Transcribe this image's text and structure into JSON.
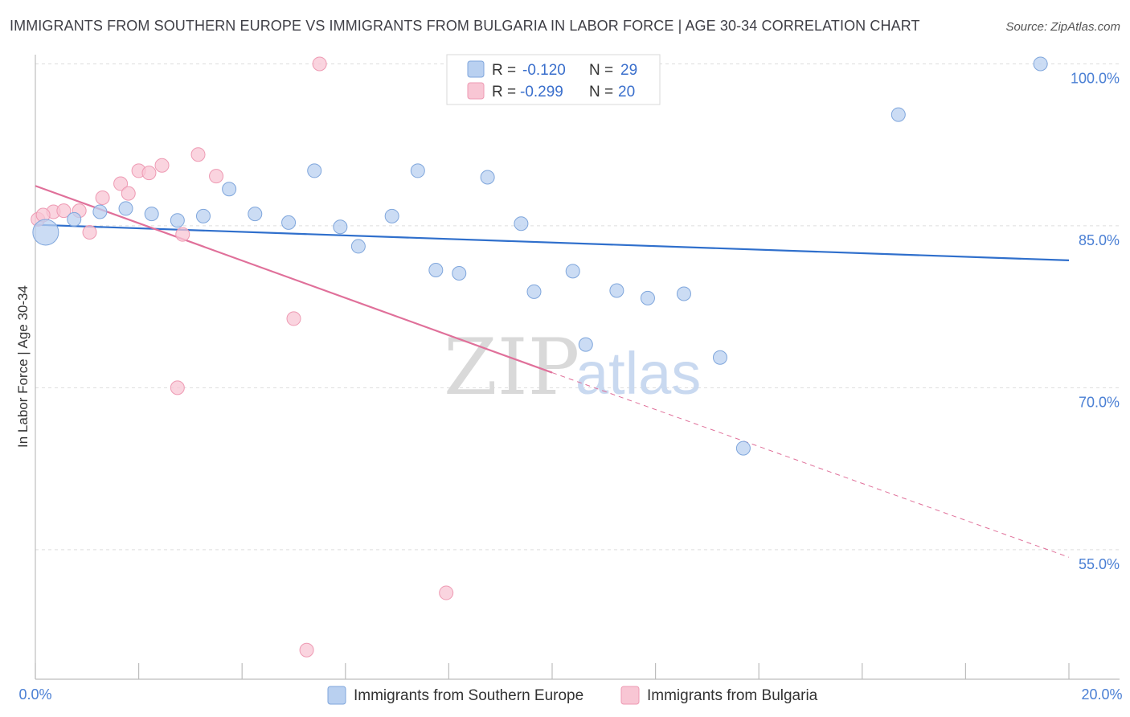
{
  "title": "IMMIGRANTS FROM SOUTHERN EUROPE VS IMMIGRANTS FROM BULGARIA IN LABOR FORCE | AGE 30-34 CORRELATION CHART",
  "source": "Source: ZipAtlas.com",
  "watermark": {
    "zip": "ZIP",
    "atlas": "atlas"
  },
  "colors": {
    "blue_fill": "#b9d0f0",
    "blue_stroke": "#7fa6dc",
    "blue_line": "#2f6fcc",
    "pink_fill": "#f8c6d4",
    "pink_stroke": "#ee9ab3",
    "pink_line": "#e0709a",
    "grid": "#dddddd",
    "tick_text": "#4a7fd4"
  },
  "legend": {
    "rows": [
      {
        "r_label": "R =",
        "r_value": "-0.120",
        "n_label": "N =",
        "n_value": "29",
        "series": "blue"
      },
      {
        "r_label": "R =",
        "r_value": "-0.299",
        "n_label": "N =",
        "n_value": "20",
        "series": "pink"
      }
    ]
  },
  "chart_data": {
    "type": "scatter",
    "xlabel": "",
    "ylabel": "In Labor Force | Age 30-34",
    "x_tick_labels": [
      "0.0%",
      "20.0%"
    ],
    "y_tick_labels": [
      "100.0%",
      "85.0%",
      "70.0%",
      "55.0%"
    ],
    "y_ticks": [
      100,
      85,
      70,
      55
    ],
    "xlim": [
      0,
      20
    ],
    "ylim": [
      43,
      101.3
    ],
    "grid": true,
    "legend_position": "bottom-center",
    "series": [
      {
        "name": "Immigrants from Southern Europe",
        "color": "blue",
        "points": [
          {
            "x": 0.2,
            "y": 84.4,
            "large": true
          },
          {
            "x": 0.75,
            "y": 85.6
          },
          {
            "x": 1.25,
            "y": 86.3
          },
          {
            "x": 1.75,
            "y": 86.6
          },
          {
            "x": 2.25,
            "y": 86.1
          },
          {
            "x": 2.75,
            "y": 85.5
          },
          {
            "x": 3.25,
            "y": 85.9
          },
          {
            "x": 3.75,
            "y": 88.4
          },
          {
            "x": 4.25,
            "y": 86.1
          },
          {
            "x": 4.9,
            "y": 85.3
          },
          {
            "x": 5.4,
            "y": 90.1
          },
          {
            "x": 5.9,
            "y": 84.9
          },
          {
            "x": 6.25,
            "y": 83.1
          },
          {
            "x": 6.9,
            "y": 85.9
          },
          {
            "x": 7.4,
            "y": 90.1
          },
          {
            "x": 7.75,
            "y": 80.9
          },
          {
            "x": 8.2,
            "y": 80.6
          },
          {
            "x": 8.75,
            "y": 89.5
          },
          {
            "x": 9.4,
            "y": 85.2
          },
          {
            "x": 9.65,
            "y": 78.9
          },
          {
            "x": 10.4,
            "y": 80.8
          },
          {
            "x": 10.65,
            "y": 74.0
          },
          {
            "x": 11.25,
            "y": 79.0
          },
          {
            "x": 11.85,
            "y": 78.3
          },
          {
            "x": 12.55,
            "y": 78.7
          },
          {
            "x": 13.25,
            "y": 72.8
          },
          {
            "x": 13.7,
            "y": 64.4
          },
          {
            "x": 16.7,
            "y": 95.3
          },
          {
            "x": 19.45,
            "y": 100.0
          }
        ],
        "trend": {
          "x0": 0,
          "y0": 85.1,
          "x1": 20,
          "y1": 81.8
        }
      },
      {
        "name": "Immigrants from Bulgaria",
        "color": "pink",
        "points": [
          {
            "x": 0.05,
            "y": 85.6
          },
          {
            "x": 0.35,
            "y": 86.3
          },
          {
            "x": 0.55,
            "y": 86.4
          },
          {
            "x": 0.85,
            "y": 86.4
          },
          {
            "x": 1.05,
            "y": 84.4
          },
          {
            "x": 1.3,
            "y": 87.6
          },
          {
            "x": 1.65,
            "y": 88.9
          },
          {
            "x": 1.8,
            "y": 88.0
          },
          {
            "x": 2.0,
            "y": 90.1
          },
          {
            "x": 2.2,
            "y": 89.9
          },
          {
            "x": 2.45,
            "y": 90.6
          },
          {
            "x": 2.85,
            "y": 84.2
          },
          {
            "x": 2.75,
            "y": 70.0
          },
          {
            "x": 3.15,
            "y": 91.6
          },
          {
            "x": 3.5,
            "y": 89.6
          },
          {
            "x": 5.0,
            "y": 76.4
          },
          {
            "x": 5.5,
            "y": 100.0
          },
          {
            "x": 5.25,
            "y": 45.7
          },
          {
            "x": 7.95,
            "y": 51.0
          },
          {
            "x": 0.15,
            "y": 86.0
          }
        ],
        "trend": {
          "x0": 0,
          "y0": 88.7,
          "x1": 10,
          "y1": 71.4
        },
        "trend_extension": {
          "x0": 10,
          "y0": 71.4,
          "x1": 20,
          "y1": 54.3
        }
      }
    ]
  }
}
